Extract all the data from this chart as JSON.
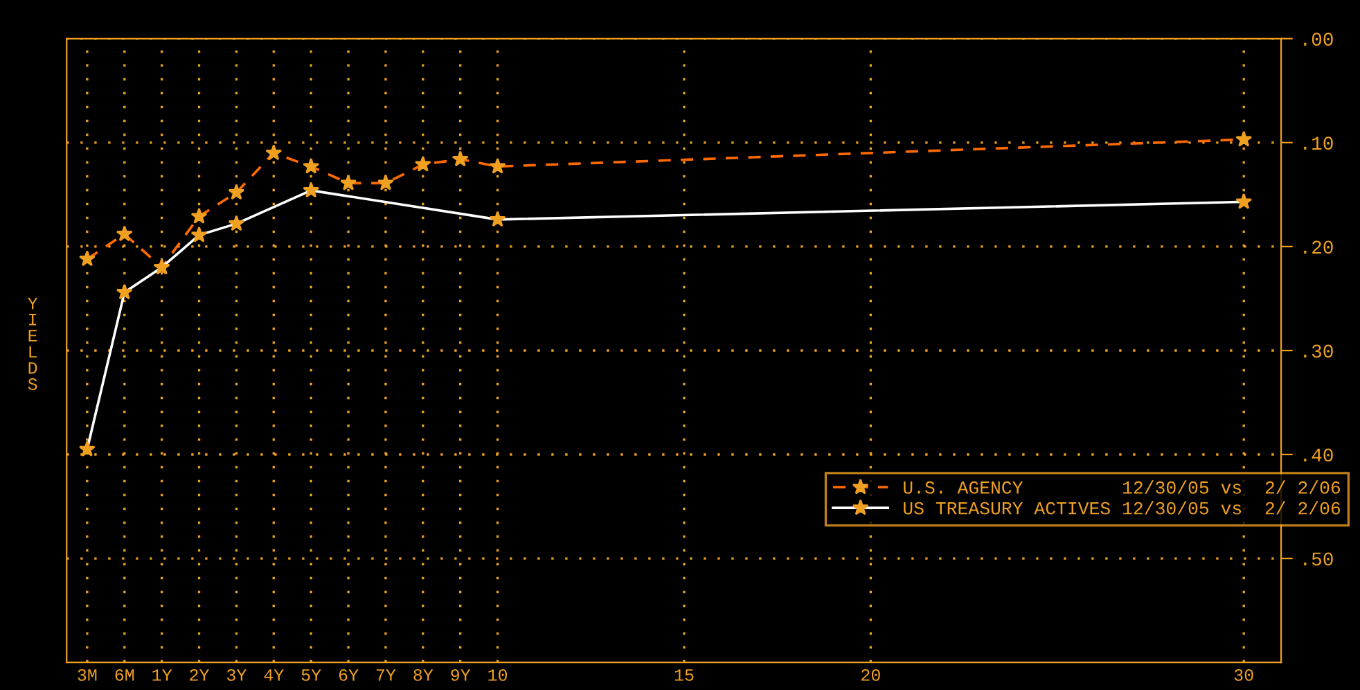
{
  "chart_data": {
    "type": "line",
    "ylabel": "YIELDS",
    "categories": [
      "3M",
      "6M",
      "1Y",
      "2Y",
      "3Y",
      "4Y",
      "5Y",
      "6Y",
      "7Y",
      "8Y",
      "9Y",
      "10",
      null,
      null,
      null,
      null,
      "15",
      null,
      null,
      null,
      null,
      "20",
      null,
      null,
      null,
      null,
      null,
      null,
      null,
      null,
      null,
      "30"
    ],
    "ylim": [
      0.6,
      0.0
    ],
    "yticks": [
      {
        "value": 0.0,
        "label": ".00"
      },
      {
        "value": 0.1,
        "label": ".10"
      },
      {
        "value": 0.2,
        "label": ".20"
      },
      {
        "value": 0.3,
        "label": ".30"
      },
      {
        "value": 0.4,
        "label": ".40"
      },
      {
        "value": 0.5,
        "label": ".50"
      }
    ],
    "grid": true,
    "legend": "bottom right",
    "marker": "star",
    "series": [
      {
        "name": "U.S. AGENCY         12/30/05 vs  2/ 2/06",
        "color": "#ff6a00",
        "line_style": "dashed",
        "values": [
          0.212,
          0.188,
          0.22,
          0.171,
          0.148,
          0.11,
          0.123,
          0.139,
          0.139,
          0.121,
          0.116,
          0.123,
          null,
          null,
          null,
          null,
          null,
          null,
          null,
          null,
          null,
          null,
          null,
          null,
          null,
          null,
          null,
          null,
          null,
          null,
          null,
          0.097
        ]
      },
      {
        "name": "US TREASURY ACTIVES 12/30/05 vs  2/ 2/06",
        "color": "#ffffff",
        "line_style": "solid",
        "values": [
          0.395,
          0.244,
          0.22,
          0.189,
          0.178,
          null,
          0.146,
          null,
          null,
          null,
          null,
          0.174,
          null,
          null,
          null,
          null,
          null,
          null,
          null,
          null,
          null,
          null,
          null,
          null,
          null,
          null,
          null,
          null,
          null,
          null,
          null,
          0.157
        ]
      }
    ]
  }
}
